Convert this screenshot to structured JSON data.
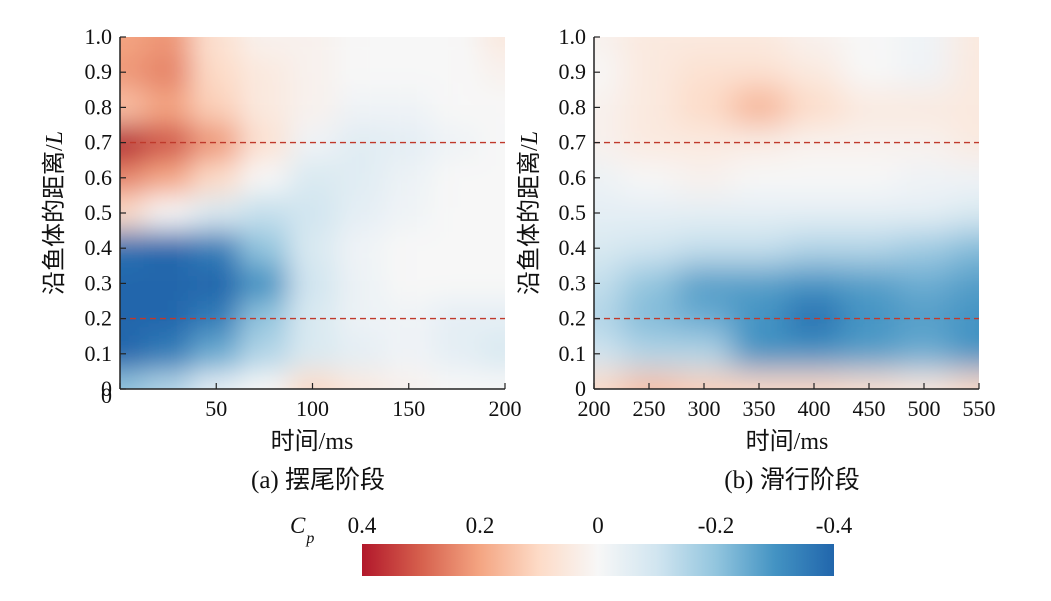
{
  "chart_data": [
    {
      "type": "heatmap",
      "panel": "a",
      "caption": "(a) 摆尾阶段",
      "xlabel": "时间/ms",
      "ylabel_text": "沿鱼体的距离/",
      "ylabel_var": "L",
      "xlim": [
        0,
        200
      ],
      "ylim": [
        0,
        1.0
      ],
      "xticks": [
        0,
        50,
        100,
        150,
        200
      ],
      "xtick_labels": [
        "0",
        "50",
        "100",
        "150",
        "200"
      ],
      "yticks": [
        0,
        0.1,
        0.2,
        0.3,
        0.4,
        0.5,
        0.6,
        0.7,
        0.8,
        0.9,
        1.0
      ],
      "ytick_labels": [
        "0",
        "0.1",
        "0.2",
        "0.3",
        "0.4",
        "0.5",
        "0.6",
        "0.7",
        "0.8",
        "0.9",
        "1.0"
      ],
      "reference_lines_y": [
        0.2,
        0.7
      ],
      "x": [
        0,
        25,
        50,
        75,
        100,
        125,
        150,
        175,
        200
      ],
      "y": [
        0,
        0.1,
        0.2,
        0.3,
        0.4,
        0.5,
        0.6,
        0.7,
        0.8,
        0.9,
        1.0
      ],
      "z": [
        [
          -0.2,
          -0.15,
          -0.05,
          0.0,
          0.1,
          0.05,
          0.02,
          0.0,
          0.0
        ],
        [
          -0.4,
          -0.35,
          -0.25,
          -0.15,
          -0.08,
          -0.05,
          -0.02,
          -0.05,
          -0.08
        ],
        [
          -0.42,
          -0.4,
          -0.35,
          -0.2,
          -0.08,
          -0.03,
          -0.02,
          -0.05,
          -0.05
        ],
        [
          -0.42,
          -0.42,
          -0.4,
          -0.3,
          -0.1,
          -0.03,
          0.0,
          0.0,
          0.0
        ],
        [
          -0.38,
          -0.4,
          -0.35,
          -0.2,
          -0.08,
          -0.02,
          0.0,
          0.0,
          0.0
        ],
        [
          0.1,
          0.0,
          -0.08,
          -0.12,
          -0.1,
          -0.05,
          -0.02,
          0.0,
          0.0
        ],
        [
          0.25,
          0.2,
          0.1,
          0.0,
          -0.08,
          -0.06,
          -0.03,
          0.0,
          0.0
        ],
        [
          0.4,
          0.32,
          0.22,
          0.08,
          -0.02,
          -0.06,
          -0.05,
          -0.02,
          0.0
        ],
        [
          0.15,
          0.2,
          0.12,
          0.05,
          0.02,
          -0.02,
          -0.02,
          0.0,
          0.0
        ],
        [
          0.22,
          0.25,
          0.1,
          0.05,
          0.02,
          0.0,
          0.0,
          0.0,
          0.02
        ],
        [
          0.2,
          0.22,
          0.08,
          0.02,
          0.02,
          0.0,
          0.0,
          0.0,
          0.05
        ]
      ]
    },
    {
      "type": "heatmap",
      "panel": "b",
      "caption": "(b) 滑行阶段",
      "xlabel": "时间/ms",
      "ylabel_text": "沿鱼体的距离/",
      "ylabel_var": "L",
      "xlim": [
        200,
        550
      ],
      "ylim": [
        0,
        1.0
      ],
      "xticks": [
        200,
        250,
        300,
        350,
        400,
        450,
        500,
        550
      ],
      "xtick_labels": [
        "200",
        "250",
        "300",
        "350",
        "400",
        "450",
        "500",
        "550"
      ],
      "yticks": [
        0,
        0.1,
        0.2,
        0.3,
        0.4,
        0.5,
        0.6,
        0.7,
        0.8,
        0.9,
        1.0
      ],
      "ytick_labels": [
        "0",
        "0.1",
        "0.2",
        "0.3",
        "0.4",
        "0.5",
        "0.6",
        "0.7",
        "0.8",
        "0.9",
        "1.0"
      ],
      "reference_lines_y": [
        0.2,
        0.7
      ],
      "x": [
        200,
        250,
        300,
        350,
        400,
        450,
        500,
        550
      ],
      "y": [
        0,
        0.1,
        0.2,
        0.3,
        0.4,
        0.5,
        0.6,
        0.7,
        0.8,
        0.9,
        1.0
      ],
      "z": [
        [
          0.1,
          0.15,
          0.12,
          0.1,
          0.1,
          0.08,
          0.05,
          0.1
        ],
        [
          -0.1,
          -0.15,
          -0.15,
          -0.3,
          -0.3,
          -0.28,
          -0.25,
          -0.3
        ],
        [
          -0.15,
          -0.22,
          -0.25,
          -0.3,
          -0.38,
          -0.3,
          -0.28,
          -0.3
        ],
        [
          -0.12,
          -0.2,
          -0.28,
          -0.28,
          -0.3,
          -0.28,
          -0.25,
          -0.28
        ],
        [
          -0.08,
          -0.1,
          -0.12,
          -0.12,
          -0.15,
          -0.15,
          -0.18,
          -0.22
        ],
        [
          -0.05,
          -0.05,
          -0.05,
          -0.05,
          -0.05,
          -0.05,
          -0.05,
          -0.08
        ],
        [
          -0.03,
          0.0,
          0.02,
          0.0,
          0.0,
          0.0,
          -0.02,
          -0.02
        ],
        [
          0.02,
          0.05,
          0.05,
          0.04,
          0.02,
          0.02,
          0.02,
          0.05
        ],
        [
          0.02,
          0.05,
          0.1,
          0.18,
          0.1,
          0.05,
          0.05,
          0.05
        ],
        [
          0.0,
          0.05,
          0.08,
          0.08,
          0.05,
          0.0,
          -0.02,
          0.05
        ],
        [
          0.02,
          0.05,
          0.05,
          0.05,
          0.02,
          0.0,
          -0.02,
          0.05
        ]
      ]
    }
  ],
  "colorbar": {
    "label_main": "C",
    "label_sub": "p",
    "tick_labels": [
      "0.4",
      "0.2",
      "0",
      "-0.2",
      "-0.4"
    ],
    "tick_values": [
      0.4,
      0.2,
      0,
      -0.2,
      -0.4
    ],
    "range": [
      0.4,
      -0.4
    ],
    "colors": [
      "#b2182b",
      "#d6604d",
      "#f4a582",
      "#fddbc7",
      "#f7f7f7",
      "#d1e5f0",
      "#92c5de",
      "#4393c3",
      "#2166ac"
    ]
  },
  "reference_line_color": "#c0392b"
}
